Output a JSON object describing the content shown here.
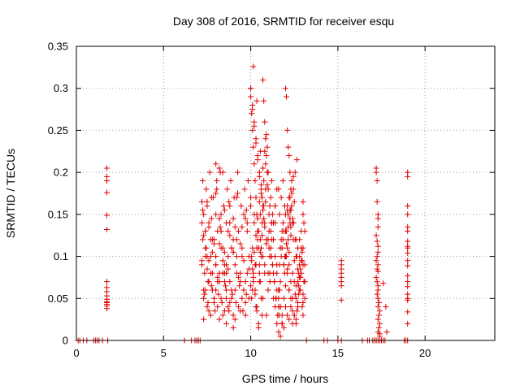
{
  "chart_data": {
    "type": "scatter",
    "title": "Day 308 of 2016, SRMTID for receiver esqu",
    "xlabel": "GPS time / hours",
    "ylabel": "SRMTID / TECUs",
    "xlim": [
      0,
      24
    ],
    "ylim": [
      0,
      0.35
    ],
    "xticks": [
      0,
      5,
      10,
      15,
      20
    ],
    "yticks": [
      0,
      0.05,
      0.1,
      0.15,
      0.2,
      0.25,
      0.3,
      0.35
    ],
    "ytick_labels": [
      "0",
      "0.05",
      "0.1",
      "0.15",
      "0.2",
      "0.25",
      "0.3",
      "0.35"
    ],
    "grid": true,
    "marker": "+",
    "color": "#e00000",
    "series": [
      {
        "name": "esqu",
        "x": [
          0.1,
          0.2,
          0.4,
          0.6,
          1.0,
          1.1,
          1.2,
          1.3,
          1.5,
          1.8,
          1.75,
          1.75,
          1.75,
          1.75,
          1.75,
          1.75,
          1.75,
          1.75,
          1.75,
          1.75,
          1.75,
          1.75,
          1.75,
          1.75,
          1.75,
          1.75,
          6.2,
          6.6,
          6.8,
          6.9,
          7.0,
          7.1,
          7.2,
          7.25,
          7.3,
          7.35,
          7.4,
          7.45,
          7.5,
          7.55,
          7.6,
          7.7,
          7.75,
          7.8,
          7.9,
          8.0,
          8.05,
          8.1,
          8.2,
          8.3,
          8.4,
          8.5,
          8.6,
          8.7,
          8.8,
          8.9,
          9.0,
          9.1,
          9.2,
          9.3,
          9.4,
          9.5,
          9.6,
          9.7,
          9.8,
          9.9,
          7.3,
          7.4,
          7.5,
          7.6,
          7.7,
          7.8,
          7.9,
          8.0,
          8.1,
          8.2,
          8.3,
          8.4,
          8.5,
          8.6,
          8.7,
          8.8,
          8.9,
          9.0,
          9.1,
          9.2,
          9.3,
          9.4,
          9.5,
          9.6,
          9.7,
          9.8,
          9.9,
          7.25,
          7.45,
          7.65,
          7.85,
          8.05,
          8.25,
          8.45,
          8.65,
          8.85,
          9.05,
          9.25,
          9.45,
          9.65,
          9.85,
          7.3,
          7.6,
          7.9,
          8.2,
          8.5,
          8.8,
          9.1,
          9.4,
          9.7,
          7.2,
          7.5,
          7.8,
          8.1,
          8.4,
          8.7,
          9.0,
          9.3,
          9.6,
          9.9,
          7.35,
          7.55,
          7.75,
          7.95,
          8.15,
          8.35,
          8.55,
          8.75,
          8.95,
          9.15,
          9.35,
          9.55,
          9.75,
          7.4,
          7.7,
          8.0,
          8.3,
          8.6,
          8.9,
          9.2,
          9.5,
          9.8,
          7.25,
          7.5,
          7.75,
          8.0,
          8.25,
          8.5,
          8.75,
          9.0,
          9.25,
          9.5,
          9.75,
          7.3,
          7.6,
          7.9,
          8.2,
          8.5,
          8.8,
          9.1,
          9.4,
          9.7,
          7.2,
          7.4,
          7.8,
          8.0,
          8.3,
          8.6,
          8.9,
          9.2,
          7.3,
          7.5,
          7.7,
          7.9,
          8.1,
          8.3,
          8.5,
          8.7,
          7.2,
          7.4,
          7.6,
          7.8,
          8.0,
          8.2,
          8.4,
          8.6,
          8.8,
          9.0,
          8.0,
          8.2,
          8.4,
          8.6,
          9.0,
          10.0,
          10.05,
          10.1,
          10.15,
          10.2,
          10.25,
          10.3,
          10.35,
          10.4,
          10.45,
          10.5,
          10.55,
          10.6,
          10.65,
          10.7,
          10.75,
          10.8,
          10.85,
          10.9,
          10.95,
          10.0,
          10.1,
          10.2,
          10.3,
          10.4,
          10.5,
          10.6,
          10.7,
          10.8,
          10.9,
          10.05,
          10.15,
          10.25,
          10.35,
          10.45,
          10.55,
          10.65,
          10.75,
          10.85,
          10.95,
          10.0,
          10.1,
          10.2,
          10.3,
          10.4,
          10.5,
          10.6,
          10.7,
          10.8,
          10.9,
          10.05,
          10.15,
          10.25,
          10.35,
          10.45,
          10.55,
          10.65,
          10.75,
          10.85,
          10.95,
          10.0,
          10.1,
          10.2,
          10.3,
          10.4,
          10.5,
          10.6,
          10.7,
          10.8,
          10.9,
          10.05,
          10.15,
          10.25,
          10.35,
          10.45,
          10.55,
          10.65,
          10.75,
          10.85,
          10.95,
          10.0,
          10.2,
          10.4,
          10.6,
          10.8,
          10.1,
          10.3,
          10.5,
          10.7,
          10.9,
          10.0,
          10.2,
          10.4,
          10.6,
          10.8,
          10.1,
          10.3,
          10.5,
          10.7,
          10.9,
          10.15,
          10.35,
          10.55,
          11.0,
          11.1,
          11.2,
          11.3,
          11.4,
          11.5,
          11.6,
          11.7,
          11.8,
          11.9,
          11.05,
          11.15,
          11.25,
          11.35,
          11.45,
          11.55,
          11.65,
          11.75,
          11.85,
          11.95,
          11.0,
          11.1,
          11.2,
          11.3,
          11.4,
          11.5,
          11.6,
          11.7,
          11.8,
          11.9,
          11.05,
          11.15,
          11.25,
          11.35,
          11.45,
          11.55,
          11.65,
          11.75,
          11.85,
          11.95,
          11.0,
          11.1,
          11.2,
          11.3,
          11.4,
          11.5,
          11.6,
          11.7,
          11.8,
          11.9,
          11.05,
          11.15,
          11.25,
          11.35,
          11.45,
          11.55,
          11.65,
          11.75,
          11.85,
          11.95,
          11.0,
          11.2,
          11.4,
          11.6,
          11.8,
          11.1,
          11.3,
          11.5,
          11.7,
          11.9,
          11.0,
          11.2,
          11.4,
          11.6,
          11.8,
          11.1,
          11.3,
          11.5,
          11.7,
          11.6,
          11.7,
          11.8,
          11.9,
          11.65,
          12.0,
          12.05,
          12.1,
          12.15,
          12.2,
          12.25,
          12.3,
          12.35,
          12.4,
          12.45,
          12.0,
          12.1,
          12.2,
          12.3,
          12.4,
          12.5,
          12.6,
          12.7,
          12.8,
          12.9,
          12.05,
          12.15,
          12.25,
          12.35,
          12.45,
          12.55,
          12.65,
          12.75,
          12.85,
          12.95,
          12.0,
          12.1,
          12.2,
          12.3,
          12.4,
          12.5,
          12.6,
          12.7,
          12.8,
          12.9,
          12.05,
          12.15,
          12.25,
          12.35,
          12.45,
          12.55,
          12.65,
          12.75,
          12.85,
          12.95,
          12.0,
          12.1,
          12.2,
          12.3,
          12.4,
          12.5,
          12.6,
          12.7,
          12.8,
          12.9,
          12.05,
          12.15,
          12.25,
          12.35,
          12.45,
          12.55,
          12.65,
          12.75,
          12.85,
          12.95,
          12.0,
          12.2,
          12.4,
          12.6,
          12.8,
          13.0,
          12.1,
          12.3,
          12.5,
          12.7,
          12.9,
          13.1,
          12.0,
          12.2,
          12.4,
          12.6,
          12.8,
          12.1,
          12.3,
          12.5,
          12.7,
          13.0,
          12.2,
          12.4,
          12.6,
          12.8,
          13.0,
          12.1,
          12.3,
          12.25,
          13.0,
          13.05,
          13.1,
          13.0,
          13.1,
          13.05,
          13.1,
          13.0,
          13.0,
          13.2,
          14.2,
          14.4,
          15.0,
          15.2,
          15.2,
          15.2,
          15.2,
          15.2,
          15.2,
          15.2,
          15.2,
          15.2,
          16.4,
          16.7,
          16.8,
          17.0,
          17.1,
          17.2,
          17.3,
          17.4,
          17.5,
          17.6,
          17.7,
          17.2,
          17.2,
          17.25,
          17.25,
          17.3,
          17.3,
          17.3,
          17.2,
          17.25,
          17.3,
          17.3,
          17.25,
          17.2,
          17.3,
          17.25,
          17.3,
          17.2,
          17.25,
          17.3,
          17.3,
          17.25,
          17.3,
          17.3,
          17.35,
          17.4,
          17.35,
          17.3,
          17.4,
          17.35,
          17.3,
          17.4,
          17.4,
          17.35,
          17.6,
          17.75,
          17.8,
          18.8,
          18.9,
          19.0,
          19.0,
          19.0,
          19.0,
          19.0,
          19.0,
          19.0,
          19.0,
          19.0,
          19.0,
          19.0,
          19.0,
          19.0,
          19.0,
          19.0,
          19.0,
          19.0,
          19.0,
          19.0,
          19.0,
          19.0
        ],
        "y": [
          0,
          0,
          0,
          0,
          0,
          0,
          0,
          0,
          0,
          0,
          0.205,
          0.195,
          0.19,
          0.176,
          0.149,
          0.132,
          0.07,
          0.063,
          0.058,
          0.053,
          0.049,
          0.046,
          0.043,
          0.041,
          0.038,
          0.045,
          0,
          0,
          0,
          0,
          0,
          0,
          0.09,
          0.12,
          0.15,
          0.08,
          0.13,
          0.11,
          0.16,
          0.07,
          0.14,
          0.1,
          0.17,
          0.06,
          0.12,
          0.09,
          0.18,
          0.13,
          0.08,
          0.15,
          0.11,
          0.07,
          0.14,
          0.1,
          0.16,
          0.06,
          0.12,
          0.09,
          0.17,
          0.13,
          0.08,
          0.11,
          0.15,
          0.07,
          0.14,
          0.1,
          0.05,
          0.06,
          0.04,
          0.07,
          0.03,
          0.08,
          0.05,
          0.06,
          0.04,
          0.07,
          0.05,
          0.03,
          0.08,
          0.06,
          0.04,
          0.07,
          0.05,
          0.03,
          0.06,
          0.08,
          0.04,
          0.07,
          0.05,
          0.06,
          0.03,
          0.08,
          0.05,
          0.19,
          0.18,
          0.2,
          0.17,
          0.19,
          0.2,
          0.16,
          0.18,
          0.19,
          0.17,
          0.2,
          0.16,
          0.18,
          0.19,
          0.125,
          0.135,
          0.115,
          0.145,
          0.105,
          0.125,
          0.135,
          0.115,
          0.145,
          0.095,
          0.085,
          0.105,
          0.075,
          0.095,
          0.085,
          0.105,
          0.075,
          0.095,
          0.085,
          0.055,
          0.045,
          0.065,
          0.035,
          0.055,
          0.045,
          0.065,
          0.035,
          0.055,
          0.045,
          0.065,
          0.035,
          0.055,
          0.11,
          0.12,
          0.1,
          0.13,
          0.09,
          0.11,
          0.12,
          0.1,
          0.13,
          0.155,
          0.165,
          0.145,
          0.175,
          0.135,
          0.155,
          0.165,
          0.145,
          0.175,
          0.135,
          0.155,
          0.025,
          0.035,
          0.045,
          0.025,
          0.035,
          0.045,
          0.025,
          0.035,
          0.045,
          0.14,
          0.1,
          0.12,
          0.09,
          0.13,
          0.08,
          0.11,
          0.1,
          0.06,
          0.1,
          0.08,
          0.12,
          0.07,
          0.11,
          0.09,
          0.13,
          0.165,
          0.13,
          0.095,
          0.06,
          0.15,
          0.115,
          0.08,
          0.05,
          0.14,
          0.105,
          0.21,
          0.205,
          0.2,
          0.02,
          0.015,
          0.3,
          0.27,
          0.25,
          0.23,
          0.21,
          0.19,
          0.17,
          0.15,
          0.13,
          0.11,
          0.09,
          0.07,
          0.05,
          0.03,
          0.31,
          0.285,
          0.26,
          0.24,
          0.22,
          0.2,
          0.29,
          0.28,
          0.26,
          0.24,
          0.22,
          0.2,
          0.18,
          0.16,
          0.14,
          0.12,
          0.1,
          0.08,
          0.06,
          0.04,
          0.02,
          0.12,
          0.14,
          0.16,
          0.18,
          0.2,
          0.3,
          0.275,
          0.255,
          0.235,
          0.215,
          0.195,
          0.175,
          0.155,
          0.135,
          0.115,
          0.095,
          0.075,
          0.055,
          0.035,
          0.015,
          0.105,
          0.125,
          0.145,
          0.165,
          0.185,
          0.065,
          0.085,
          0.105,
          0.125,
          0.145,
          0.165,
          0.185,
          0.205,
          0.225,
          0.245,
          0.05,
          0.07,
          0.09,
          0.11,
          0.13,
          0.15,
          0.17,
          0.19,
          0.21,
          0.23,
          0.16,
          0.14,
          0.12,
          0.1,
          0.08,
          0.11,
          0.09,
          0.07,
          0.05,
          0.03,
          0.17,
          0.15,
          0.13,
          0.11,
          0.09,
          0.06,
          0.04,
          0.08,
          0.1,
          0.12,
          0.326,
          0.285,
          0.225,
          0.18,
          0.16,
          0.14,
          0.12,
          0.1,
          0.08,
          0.06,
          0.04,
          0.02,
          0.05,
          0.13,
          0.11,
          0.09,
          0.07,
          0.05,
          0.03,
          0.15,
          0.17,
          0.19,
          0.1,
          0.08,
          0.1,
          0.12,
          0.14,
          0.16,
          0.18,
          0.06,
          0.04,
          0.02,
          0.09,
          0.11,
          0.13,
          0.15,
          0.07,
          0.05,
          0.03,
          0.09,
          0.12,
          0.14,
          0.16,
          0.06,
          0.08,
          0.1,
          0.12,
          0.14,
          0.02,
          0.04,
          0.07,
          0.11,
          0.13,
          0.15,
          0.17,
          0.09,
          0.07,
          0.05,
          0.03,
          0.06,
          0.1,
          0.12,
          0.08,
          0.2,
          0.19,
          0.04,
          0.05,
          0.03,
          0.1,
          0.08,
          0.06,
          0.11,
          0.09,
          0.12,
          0.14,
          0.16,
          0.18,
          0.13,
          0.07,
          0.05,
          0.09,
          0.11,
          0.01,
          0.005,
          0.02,
          0.015,
          0.03,
          0.3,
          0.29,
          0.25,
          0.23,
          0.22,
          0.2,
          0.18,
          0.16,
          0.14,
          0.12,
          0.1,
          0.08,
          0.06,
          0.04,
          0.02,
          0.03,
          0.05,
          0.07,
          0.09,
          0.11,
          0.13,
          0.15,
          0.17,
          0.19,
          0.14,
          0.12,
          0.1,
          0.08,
          0.06,
          0.04,
          0.065,
          0.085,
          0.105,
          0.125,
          0.145,
          0.165,
          0.025,
          0.045,
          0.075,
          0.095,
          0.115,
          0.135,
          0.155,
          0.175,
          0.195,
          0.055,
          0.035,
          0.065,
          0.085,
          0.105,
          0.13,
          0.11,
          0.09,
          0.07,
          0.05,
          0.03,
          0.02,
          0.04,
          0.06,
          0.08,
          0.1,
          0.12,
          0.14,
          0.16,
          0.18,
          0.2,
          0.215,
          0.055,
          0.075,
          0.095,
          0.04,
          0.06,
          0.08,
          0.1,
          0.12,
          0.09,
          0.03,
          0.05,
          0.07,
          0.11,
          0.13,
          0.07,
          0.15,
          0.17,
          0.14,
          0.12,
          0.1,
          0.155,
          0.135,
          0.095,
          0.085,
          0.045,
          0.025,
          0.035,
          0.065,
          0.075,
          0.055,
          0.16,
          0.155,
          0.145,
          0.15,
          0.14,
          0.13,
          0.11,
          0.09,
          0.07,
          0.05,
          0.03,
          0.165,
          0,
          0,
          0,
          0,
          0,
          0.095,
          0.09,
          0.085,
          0.08,
          0.075,
          0.07,
          0.065,
          0.048,
          0,
          0,
          0,
          0,
          0,
          0,
          0,
          0,
          0,
          0,
          0,
          0.205,
          0.2,
          0.19,
          0.165,
          0.15,
          0.145,
          0.135,
          0.125,
          0.118,
          0.112,
          0.105,
          0.1,
          0.095,
          0.09,
          0.085,
          0.082,
          0.075,
          0.07,
          0.065,
          0.06,
          0.055,
          0.05,
          0.04,
          0.045,
          0.035,
          0.03,
          0.025,
          0.02,
          0.015,
          0.01,
          0.008,
          0.005,
          0.045,
          0.068,
          0.04,
          0.01,
          0,
          0,
          0,
          0.2,
          0.195,
          0.16,
          0.15,
          0.135,
          0.13,
          0.118,
          0.112,
          0.104,
          0.095,
          0.089,
          0.077,
          0.064,
          0.055,
          0.048,
          0.034,
          0.02,
          0.05,
          0.07,
          0.11
        ]
      }
    ]
  }
}
